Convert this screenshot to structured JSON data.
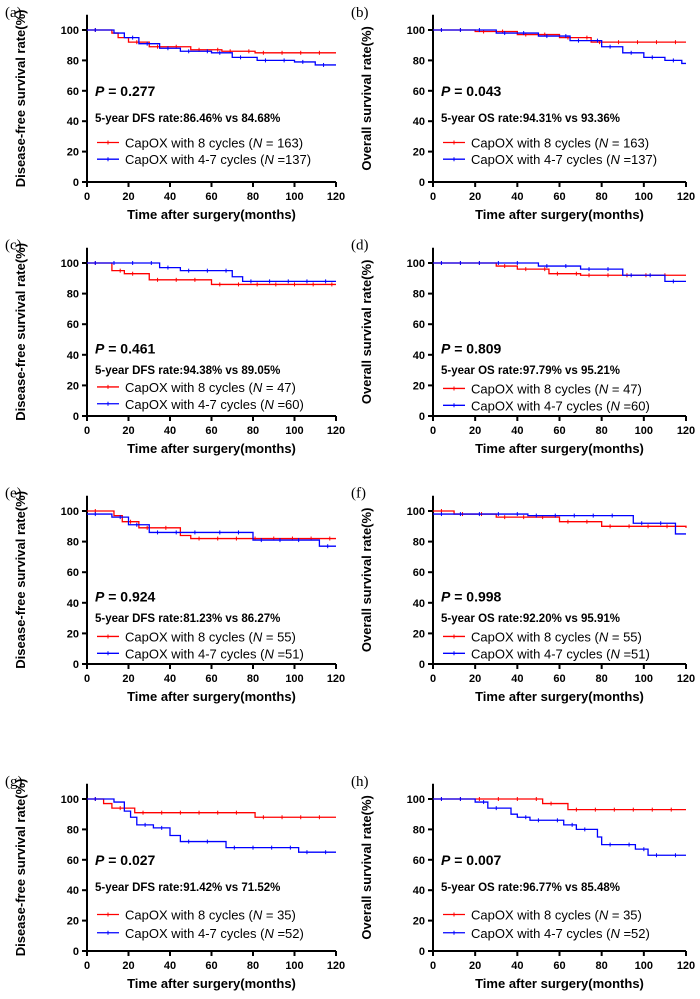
{
  "chart_data": [
    {
      "id": "a",
      "label": "(a)",
      "type": "line",
      "ylabel": "Disease-free survival rate(%)",
      "xlabel": "Time after surgery(months)",
      "xlim": [
        0,
        120
      ],
      "ylim": [
        0,
        110
      ],
      "xticks": [
        0,
        20,
        40,
        60,
        80,
        100,
        120
      ],
      "yticks": [
        0,
        20,
        40,
        60,
        80,
        100
      ],
      "p_text": "P",
      "p_value": "= 0.277",
      "rate_text": "5-year DFS rate:86.46% vs 84.68%",
      "series": [
        {
          "name": "CapOX with 8 cycles",
          "n_text": "= 163",
          "color": "#ff0000",
          "points": [
            [
              0,
              100
            ],
            [
              12,
              98
            ],
            [
              15,
              95
            ],
            [
              20,
              92
            ],
            [
              30,
              89
            ],
            [
              50,
              87
            ],
            [
              65,
              86
            ],
            [
              81,
              85
            ],
            [
              120,
              85
            ]
          ]
        },
        {
          "name": "CapOX with 4-7 cycles",
          "n_text": "=137",
          "color": "#0000ff",
          "points": [
            [
              0,
              100
            ],
            [
              13,
              98
            ],
            [
              18,
              95
            ],
            [
              25,
              91
            ],
            [
              35,
              88
            ],
            [
              45,
              86
            ],
            [
              60,
              85
            ],
            [
              70,
              82
            ],
            [
              82,
              80
            ],
            [
              100,
              79
            ],
            [
              110,
              77
            ],
            [
              120,
              77
            ]
          ]
        }
      ]
    },
    {
      "id": "b",
      "label": "(b)",
      "type": "line",
      "ylabel": "Overall survival rate(%)",
      "xlabel": "Time after surgery(months)",
      "xlim": [
        0,
        120
      ],
      "ylim": [
        0,
        110
      ],
      "xticks": [
        0,
        20,
        40,
        60,
        80,
        100,
        120
      ],
      "yticks": [
        0,
        20,
        40,
        60,
        80,
        100
      ],
      "p_text": "P",
      "p_value": "= 0.043",
      "rate_text": "5-year OS rate:94.31% vs 93.36%",
      "series": [
        {
          "name": "CapOX with 8 cycles",
          "n_text": "= 163",
          "color": "#ff0000",
          "points": [
            [
              0,
              100
            ],
            [
              20,
              99
            ],
            [
              40,
              97
            ],
            [
              60,
              95
            ],
            [
              75,
              92
            ],
            [
              120,
              92
            ]
          ]
        },
        {
          "name": "CapOX with 4-7 cycles",
          "n_text": "=137",
          "color": "#0000ff",
          "points": [
            [
              0,
              100
            ],
            [
              30,
              98
            ],
            [
              50,
              96
            ],
            [
              65,
              93
            ],
            [
              80,
              89
            ],
            [
              90,
              85
            ],
            [
              100,
              82
            ],
            [
              110,
              80
            ],
            [
              118,
              78
            ],
            [
              120,
              78
            ]
          ]
        }
      ]
    },
    {
      "id": "c",
      "label": "(c)",
      "type": "line",
      "ylabel": "Disease-free survival rate(%)",
      "xlabel": "Time after surgery(months)",
      "xlim": [
        0,
        120
      ],
      "ylim": [
        0,
        110
      ],
      "xticks": [
        0,
        20,
        40,
        60,
        80,
        100,
        120
      ],
      "yticks": [
        0,
        20,
        40,
        60,
        80,
        100
      ],
      "p_text": "P",
      "p_value": "= 0.461",
      "rate_text": "5-year DFS rate:94.38% vs 89.05%",
      "series": [
        {
          "name": "CapOX with 8 cycles",
          "n_text": "= 47",
          "color": "#ff0000",
          "points": [
            [
              0,
              100
            ],
            [
              12,
              95
            ],
            [
              18,
              93
            ],
            [
              30,
              89
            ],
            [
              60,
              86
            ],
            [
              120,
              86
            ]
          ]
        },
        {
          "name": "CapOX with 4-7 cycles",
          "n_text": "=60",
          "color": "#0000ff",
          "points": [
            [
              0,
              100
            ],
            [
              35,
              97
            ],
            [
              45,
              95
            ],
            [
              70,
              91
            ],
            [
              75,
              88
            ],
            [
              120,
              88
            ]
          ]
        }
      ]
    },
    {
      "id": "d",
      "label": "(d)",
      "type": "line",
      "ylabel": "Overall survival rate(%)",
      "xlabel": "Time after surgery(months)",
      "xlim": [
        0,
        120
      ],
      "ylim": [
        0,
        110
      ],
      "xticks": [
        0,
        20,
        40,
        60,
        80,
        100,
        120
      ],
      "yticks": [
        0,
        20,
        40,
        60,
        80,
        100
      ],
      "p_text": "P",
      "p_value": "= 0.809",
      "rate_text": "5-year OS rate:97.79% vs 95.21%",
      "series": [
        {
          "name": "CapOX with 8 cycles",
          "n_text": "= 47",
          "color": "#ff0000",
          "points": [
            [
              0,
              100
            ],
            [
              30,
              98
            ],
            [
              40,
              96
            ],
            [
              55,
              93
            ],
            [
              70,
              92
            ],
            [
              120,
              92
            ]
          ]
        },
        {
          "name": "CapOX with 4-7 cycles",
          "n_text": "=60",
          "color": "#0000ff",
          "points": [
            [
              0,
              100
            ],
            [
              50,
              98
            ],
            [
              70,
              96
            ],
            [
              90,
              92
            ],
            [
              110,
              88
            ],
            [
              120,
              88
            ]
          ]
        }
      ]
    },
    {
      "id": "e",
      "label": "(e)",
      "type": "line",
      "ylabel": "Disease-free survival rate(%)",
      "xlabel": "Time after surgery(months)",
      "xlim": [
        0,
        120
      ],
      "ylim": [
        0,
        110
      ],
      "xticks": [
        0,
        20,
        40,
        60,
        80,
        100,
        120
      ],
      "yticks": [
        0,
        20,
        40,
        60,
        80,
        100
      ],
      "p_text": "P",
      "p_value": "= 0.924",
      "rate_text": "5-year DFS rate:81.23% vs 86.27%",
      "series": [
        {
          "name": "CapOX with 8 cycles",
          "n_text": "= 55",
          "color": "#ff0000",
          "points": [
            [
              0,
              100
            ],
            [
              13,
              97
            ],
            [
              17,
              93
            ],
            [
              25,
              89
            ],
            [
              45,
              84
            ],
            [
              50,
              82
            ],
            [
              120,
              82
            ]
          ]
        },
        {
          "name": "CapOX with 4-7 cycles",
          "n_text": "=51",
          "color": "#0000ff",
          "points": [
            [
              0,
              98
            ],
            [
              12,
              96
            ],
            [
              20,
              91
            ],
            [
              30,
              86
            ],
            [
              60,
              86
            ],
            [
              80,
              81
            ],
            [
              112,
              77
            ],
            [
              120,
              77
            ]
          ]
        }
      ]
    },
    {
      "id": "f",
      "label": "(f)",
      "type": "line",
      "ylabel": "Overall survival rate(%)",
      "xlabel": "Time after surgery(months)",
      "xlim": [
        0,
        120
      ],
      "ylim": [
        0,
        110
      ],
      "xticks": [
        0,
        20,
        40,
        60,
        80,
        100,
        120
      ],
      "yticks": [
        0,
        20,
        40,
        60,
        80,
        100
      ],
      "p_text": "P",
      "p_value": "= 0.998",
      "rate_text": "5-year OS rate:92.20% vs 95.91%",
      "series": [
        {
          "name": "CapOX with 8 cycles",
          "n_text": "= 55",
          "color": "#ff0000",
          "points": [
            [
              0,
              100
            ],
            [
              10,
              98
            ],
            [
              30,
              96
            ],
            [
              60,
              93
            ],
            [
              80,
              90
            ],
            [
              120,
              89
            ]
          ]
        },
        {
          "name": "CapOX with 4-7 cycles",
          "n_text": "=51",
          "color": "#0000ff",
          "points": [
            [
              0,
              98
            ],
            [
              45,
              97
            ],
            [
              95,
              92
            ],
            [
              115,
              85
            ],
            [
              120,
              85
            ]
          ]
        }
      ]
    },
    {
      "id": "g",
      "label": "(g)",
      "type": "line",
      "ylabel": "Disease-free survival rate(%)",
      "xlabel": "Time after surgery(months)",
      "xlim": [
        0,
        120
      ],
      "ylim": [
        0,
        110
      ],
      "xticks": [
        0,
        20,
        40,
        60,
        80,
        100,
        120
      ],
      "yticks": [
        0,
        20,
        40,
        60,
        80,
        100
      ],
      "p_text": "P",
      "p_value": "= 0.027",
      "rate_text": "5-year DFS rate:91.42% vs 71.52%",
      "series": [
        {
          "name": "CapOX with 8 cycles",
          "n_text": "= 35",
          "color": "#ff0000",
          "points": [
            [
              0,
              100
            ],
            [
              8,
              97
            ],
            [
              12,
              94
            ],
            [
              23,
              91
            ],
            [
              81,
              88
            ],
            [
              120,
              88
            ]
          ]
        },
        {
          "name": "CapOX with 4-7 cycles",
          "n_text": "=52",
          "color": "#0000ff",
          "points": [
            [
              0,
              100
            ],
            [
              13,
              98
            ],
            [
              18,
              92
            ],
            [
              21,
              88
            ],
            [
              24,
              83
            ],
            [
              32,
              81
            ],
            [
              40,
              76
            ],
            [
              45,
              72
            ],
            [
              67,
              68
            ],
            [
              102,
              65
            ],
            [
              120,
              65
            ]
          ]
        }
      ]
    },
    {
      "id": "h",
      "label": "(h)",
      "type": "line",
      "ylabel": "Overall survival rate(%)",
      "xlabel": "Time after surgery(months)",
      "xlim": [
        0,
        120
      ],
      "ylim": [
        0,
        110
      ],
      "xticks": [
        0,
        20,
        40,
        60,
        80,
        100,
        120
      ],
      "yticks": [
        0,
        20,
        40,
        60,
        80,
        100
      ],
      "p_text": "P",
      "p_value": "= 0.007",
      "rate_text": "5-year OS rate:96.77% vs 85.48%",
      "series": [
        {
          "name": "CapOX with 8 cycles",
          "n_text": "= 35",
          "color": "#ff0000",
          "points": [
            [
              0,
              100
            ],
            [
              52,
              97
            ],
            [
              64,
              93
            ],
            [
              120,
              93
            ]
          ]
        },
        {
          "name": "CapOX with 4-7 cycles",
          "n_text": "=52",
          "color": "#0000ff",
          "points": [
            [
              0,
              100
            ],
            [
              20,
              98
            ],
            [
              26,
              94
            ],
            [
              37,
              90
            ],
            [
              40,
              88
            ],
            [
              46,
              86
            ],
            [
              62,
              83
            ],
            [
              68,
              80
            ],
            [
              78,
              75
            ],
            [
              80,
              70
            ],
            [
              96,
              67
            ],
            [
              102,
              63
            ],
            [
              120,
              63
            ]
          ]
        }
      ]
    }
  ]
}
